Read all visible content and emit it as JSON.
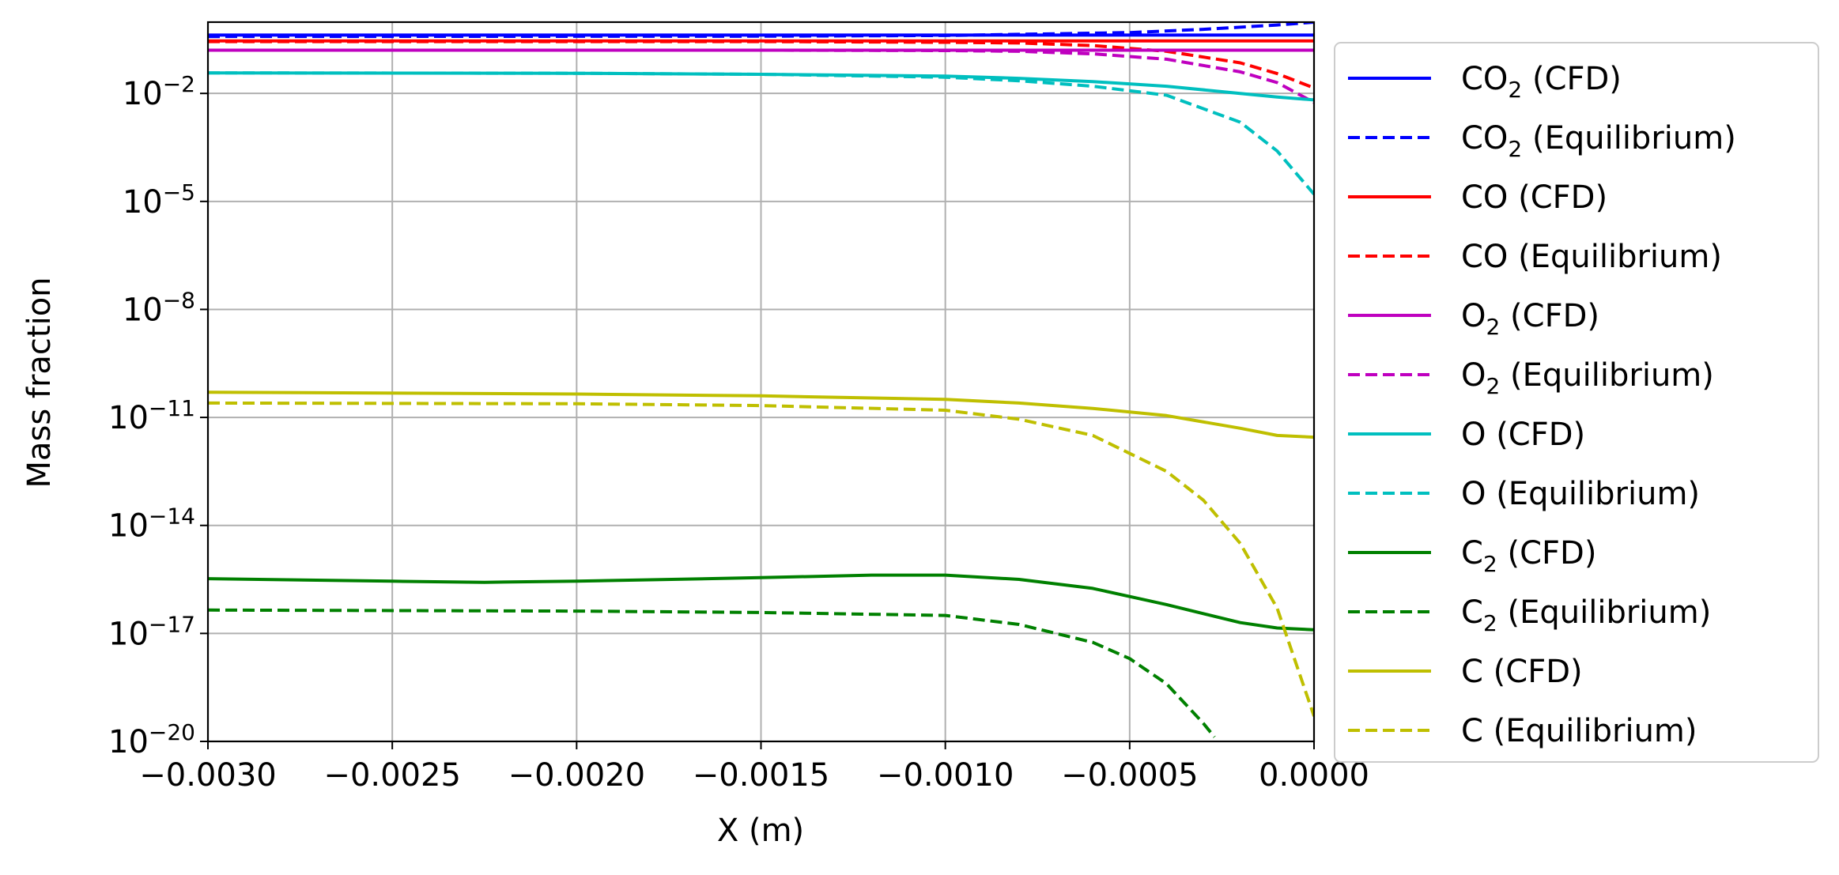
{
  "chart_data": {
    "type": "line",
    "xlabel": "X (m)",
    "ylabel": "Mass fraction",
    "xlim": [
      -0.003,
      0.0
    ],
    "ylim_log10": [
      -20,
      -0.02
    ],
    "yscale": "log",
    "grid": true,
    "legend_placement": "outside-right",
    "x_ticks": [
      "−0.0030",
      "−0.0025",
      "−0.0020",
      "−0.0015",
      "−0.0010",
      "−0.0005",
      "0.0000"
    ],
    "y_ticks": [
      {
        "exp": -2,
        "base": "10",
        "sup": "−2"
      },
      {
        "exp": -5,
        "base": "10",
        "sup": "−5"
      },
      {
        "exp": -8,
        "base": "10",
        "sup": "−8"
      },
      {
        "exp": -11,
        "base": "10",
        "sup": "−11"
      },
      {
        "exp": -14,
        "base": "10",
        "sup": "−14"
      },
      {
        "exp": -17,
        "base": "10",
        "sup": "−17"
      },
      {
        "exp": -20,
        "base": "10",
        "sup": "−20"
      }
    ],
    "series": [
      {
        "name": "CO2 (CFD)",
        "label_main": "CO",
        "label_sub": "2",
        "label_rest": " (CFD)",
        "color": "#0000ff",
        "dash": false,
        "x": [
          -0.003,
          -0.002,
          -0.001,
          -0.0005,
          0.0
        ],
        "log10_y": [
          -0.38,
          -0.38,
          -0.38,
          -0.38,
          -0.38
        ]
      },
      {
        "name": "CO2 (Equilibrium)",
        "label_main": "CO",
        "label_sub": "2",
        "label_rest": " (Equilibrium)",
        "color": "#0000ff",
        "dash": true,
        "x": [
          -0.003,
          -0.0015,
          -0.001,
          -0.0005,
          -0.0003,
          -0.0001,
          0.0
        ],
        "log10_y": [
          -0.42,
          -0.41,
          -0.39,
          -0.31,
          -0.22,
          -0.1,
          -0.02
        ]
      },
      {
        "name": "CO (CFD)",
        "label_main": "CO",
        "label_sub": "",
        "label_rest": " (CFD)",
        "color": "#ff0000",
        "dash": false,
        "x": [
          -0.003,
          -0.002,
          -0.001,
          -0.0005,
          0.0
        ],
        "log10_y": [
          -0.54,
          -0.54,
          -0.54,
          -0.54,
          -0.54
        ]
      },
      {
        "name": "CO (Equilibrium)",
        "label_main": "CO",
        "label_sub": "",
        "label_rest": " (Equilibrium)",
        "color": "#ff0000",
        "dash": true,
        "x": [
          -0.003,
          -0.0015,
          -0.001,
          -0.0008,
          -0.0006,
          -0.0004,
          -0.0002,
          -0.0001,
          0.0
        ],
        "log10_y": [
          -0.56,
          -0.56,
          -0.58,
          -0.6,
          -0.67,
          -0.83,
          -1.15,
          -1.45,
          -1.85
        ]
      },
      {
        "name": "O2 (CFD)",
        "label_main": "O",
        "label_sub": "2",
        "label_rest": " (CFD)",
        "color": "#bf00bf",
        "dash": false,
        "x": [
          -0.003,
          -0.002,
          -0.001,
          -0.0005,
          0.0
        ],
        "log10_y": [
          -0.8,
          -0.8,
          -0.8,
          -0.8,
          -0.8
        ]
      },
      {
        "name": "O2 (Equilibrium)",
        "label_main": "O",
        "label_sub": "2",
        "label_rest": " (Equilibrium)",
        "color": "#bf00bf",
        "dash": true,
        "x": [
          -0.003,
          -0.0015,
          -0.001,
          -0.0008,
          -0.0006,
          -0.0004,
          -0.0002,
          -0.0001,
          0.0
        ],
        "log10_y": [
          -0.8,
          -0.8,
          -0.81,
          -0.83,
          -0.9,
          -1.05,
          -1.4,
          -1.7,
          -2.25
        ]
      },
      {
        "name": "O (CFD)",
        "label_main": "O",
        "label_sub": "",
        "label_rest": " (CFD)",
        "color": "#00bfbf",
        "dash": false,
        "x": [
          -0.003,
          -0.002,
          -0.0015,
          -0.001,
          -0.0008,
          -0.0006,
          -0.0004,
          -0.0002,
          -0.0001,
          0.0
        ],
        "log10_y": [
          -1.43,
          -1.44,
          -1.47,
          -1.52,
          -1.58,
          -1.67,
          -1.8,
          -2.0,
          -2.1,
          -2.18
        ]
      },
      {
        "name": "O (Equilibrium)",
        "label_main": "O",
        "label_sub": "",
        "label_rest": " (Equilibrium)",
        "color": "#00bfbf",
        "dash": true,
        "x": [
          -0.003,
          -0.002,
          -0.0015,
          -0.001,
          -0.0008,
          -0.0006,
          -0.0004,
          -0.0002,
          -0.0001,
          0.0
        ],
        "log10_y": [
          -1.43,
          -1.44,
          -1.47,
          -1.55,
          -1.65,
          -1.8,
          -2.05,
          -2.8,
          -3.6,
          -4.8
        ]
      },
      {
        "name": "C2 (CFD)",
        "label_main": "C",
        "label_sub": "2",
        "label_rest": " (CFD)",
        "color": "#008000",
        "dash": false,
        "x": [
          -0.003,
          -0.0025,
          -0.00225,
          -0.002,
          -0.0015,
          -0.0012,
          -0.001,
          -0.0008,
          -0.0006,
          -0.0004,
          -0.0002,
          -0.0001,
          0.0
        ],
        "log10_y": [
          -15.48,
          -15.55,
          -15.58,
          -15.55,
          -15.45,
          -15.38,
          -15.38,
          -15.5,
          -15.75,
          -16.2,
          -16.7,
          -16.85,
          -16.9
        ]
      },
      {
        "name": "C2 (Equilibrium)",
        "label_main": "C",
        "label_sub": "2",
        "label_rest": " (Equilibrium)",
        "color": "#008000",
        "dash": true,
        "x": [
          -0.003,
          -0.002,
          -0.0015,
          -0.001,
          -0.0008,
          -0.0006,
          -0.0005,
          -0.0004,
          -0.0003,
          -0.00027
        ],
        "log10_y": [
          -16.35,
          -16.38,
          -16.42,
          -16.5,
          -16.75,
          -17.25,
          -17.7,
          -18.4,
          -19.5,
          -19.88
        ]
      },
      {
        "name": "C (CFD)",
        "label_main": "C",
        "label_sub": "",
        "label_rest": " (CFD)",
        "color": "#bfbf00",
        "dash": false,
        "x": [
          -0.003,
          -0.002,
          -0.0015,
          -0.001,
          -0.0008,
          -0.0006,
          -0.0004,
          -0.0002,
          -0.0001,
          0.0
        ],
        "log10_y": [
          -10.3,
          -10.35,
          -10.4,
          -10.5,
          -10.6,
          -10.75,
          -10.95,
          -11.3,
          -11.5,
          -11.55
        ]
      },
      {
        "name": "C (Equilibrium)",
        "label_main": "C",
        "label_sub": "",
        "label_rest": " (Equilibrium)",
        "color": "#bfbf00",
        "dash": true,
        "x": [
          -0.003,
          -0.002,
          -0.0015,
          -0.001,
          -0.0008,
          -0.0006,
          -0.0004,
          -0.0003,
          -0.0002,
          -0.0001,
          -5e-05,
          0.0
        ],
        "log10_y": [
          -10.6,
          -10.62,
          -10.67,
          -10.8,
          -11.05,
          -11.5,
          -12.5,
          -13.3,
          -14.5,
          -16.3,
          -17.8,
          -19.3
        ]
      }
    ]
  }
}
